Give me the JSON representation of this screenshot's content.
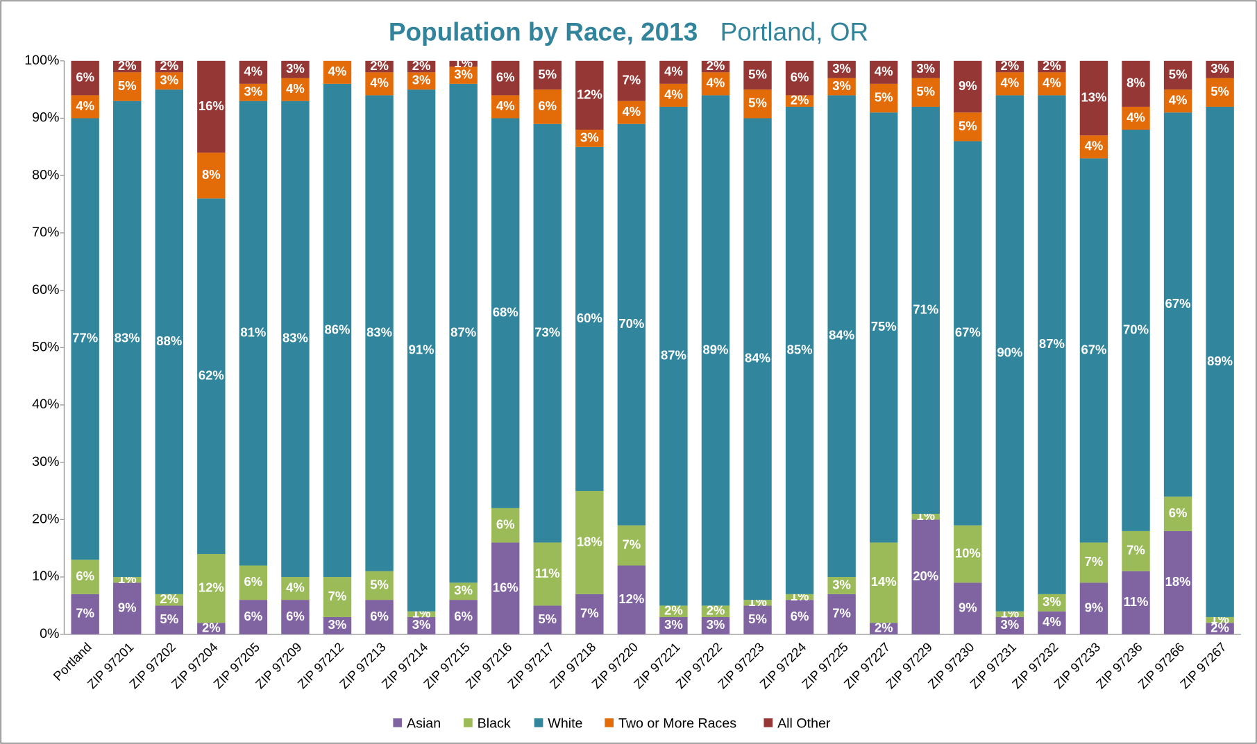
{
  "chart_data": {
    "type": "stacked_bar",
    "title": "Population by Race, 2013",
    "subtitle": "Portland, OR",
    "categories": [
      "Portland",
      "ZIP 97201",
      "ZIP 97202",
      "ZIP 97204",
      "ZIP 97205",
      "ZIP 97209",
      "ZIP 97212",
      "ZIP 97213",
      "ZIP 97214",
      "ZIP 97215",
      "ZIP 97216",
      "ZIP 97217",
      "ZIP 97218",
      "ZIP 97220",
      "ZIP 97221",
      "ZIP 97222",
      "ZIP 97223",
      "ZIP 97224",
      "ZIP 97225",
      "ZIP 97227",
      "ZIP 97229",
      "ZIP 97230",
      "ZIP 97231",
      "ZIP 97232",
      "ZIP 97233",
      "ZIP 97236",
      "ZIP 97266",
      "ZIP 97267"
    ],
    "series": [
      {
        "name": "Asian",
        "color": "#8064a2",
        "values": [
          7,
          9,
          5,
          2,
          6,
          6,
          3,
          6,
          3,
          6,
          16,
          5,
          7,
          12,
          3,
          3,
          5,
          6,
          7,
          2,
          20,
          9,
          3,
          4,
          9,
          11,
          18,
          2
        ],
        "value_labels": [
          "7%",
          "9%",
          "5%",
          "2%",
          "6%",
          "6%",
          "3%",
          "6%",
          "3%",
          "6%",
          "16%",
          "5%",
          "7%",
          "12%",
          "3%",
          "3%",
          "5%",
          "6%",
          "7%",
          "2%",
          "20%",
          "9%",
          "3%",
          "4%",
          "9%",
          "11%",
          "18%",
          "2%"
        ]
      },
      {
        "name": "Black",
        "color": "#9bbb59",
        "values": [
          6,
          1,
          2,
          12,
          6,
          4,
          7,
          5,
          1,
          3,
          6,
          11,
          18,
          7,
          2,
          2,
          1,
          1,
          3,
          14,
          1,
          10,
          1,
          3,
          7,
          7,
          6,
          1
        ],
        "value_labels": [
          "6%",
          "1%",
          "2%",
          "12%",
          "6%",
          "4%",
          "7%",
          "5%",
          "1%",
          "3%",
          "6%",
          "11%",
          "18%",
          "7%",
          "2%",
          "2%",
          "1%",
          "1%",
          "3%",
          "14%",
          "1%",
          "10%",
          "1%",
          "3%",
          "7%",
          "7%",
          "6%",
          "1%"
        ]
      },
      {
        "name": "White",
        "color": "#31859c",
        "values": [
          77,
          83,
          88,
          62,
          81,
          83,
          86,
          83,
          91,
          87,
          68,
          73,
          60,
          70,
          87,
          89,
          84,
          85,
          84,
          75,
          71,
          67,
          90,
          87,
          67,
          70,
          67,
          89
        ],
        "value_labels": [
          "77%",
          "83%",
          "88%",
          "62%",
          "81%",
          "83%",
          "86%",
          "83%",
          "91%",
          "87%",
          "68%",
          "73%",
          "60%",
          "70%",
          "87%",
          "89%",
          "84%",
          "85%",
          "84%",
          "75%",
          "71%",
          "67%",
          "90%",
          "87%",
          "67%",
          "70%",
          "67%",
          "89%"
        ]
      },
      {
        "name": "Two or More Races",
        "color": "#e36c09",
        "values": [
          4,
          5,
          3,
          8,
          3,
          4,
          4,
          4,
          3,
          3,
          4,
          6,
          3,
          4,
          4,
          4,
          5,
          2,
          3,
          5,
          5,
          5,
          4,
          4,
          4,
          4,
          4,
          5
        ],
        "value_labels": [
          "4%",
          "5%",
          "3%",
          "8%",
          "3%",
          "4%",
          "4%",
          "4%",
          "3%",
          "3%",
          "4%",
          "6%",
          "3%",
          "4%",
          "4%",
          "4%",
          "5%",
          "2%",
          "3%",
          "5%",
          "5%",
          "5%",
          "4%",
          "4%",
          "4%",
          "4%",
          "4%",
          "5%"
        ]
      },
      {
        "name": "All Other",
        "color": "#953735",
        "values": [
          6,
          2,
          2,
          16,
          4,
          3,
          null,
          2,
          2,
          1,
          6,
          5,
          12,
          7,
          4,
          2,
          5,
          6,
          3,
          4,
          3,
          9,
          2,
          2,
          13,
          8,
          5,
          3
        ],
        "value_labels": [
          "6%",
          "2%",
          "2%",
          "16%",
          "4%",
          "3%",
          null,
          "2%",
          "2%",
          "1%",
          "6%",
          "5%",
          "12%",
          "7%",
          "4%",
          "2%",
          "5%",
          "6%",
          "3%",
          "4%",
          "3%",
          "9%",
          "2%",
          "2%",
          "13%",
          "8%",
          "5%",
          "3%"
        ]
      }
    ],
    "ylim": [
      0,
      100
    ],
    "yticks": [
      {
        "value": 0,
        "label": "0%"
      },
      {
        "value": 10,
        "label": "10%"
      },
      {
        "value": 20,
        "label": "20%"
      },
      {
        "value": 30,
        "label": "30%"
      },
      {
        "value": 40,
        "label": "40%"
      },
      {
        "value": 50,
        "label": "50%"
      },
      {
        "value": 60,
        "label": "60%"
      },
      {
        "value": 70,
        "label": "70%"
      },
      {
        "value": 80,
        "label": "80%"
      },
      {
        "value": 90,
        "label": "90%"
      },
      {
        "value": 100,
        "label": "100%"
      }
    ],
    "legend": "bottom"
  }
}
